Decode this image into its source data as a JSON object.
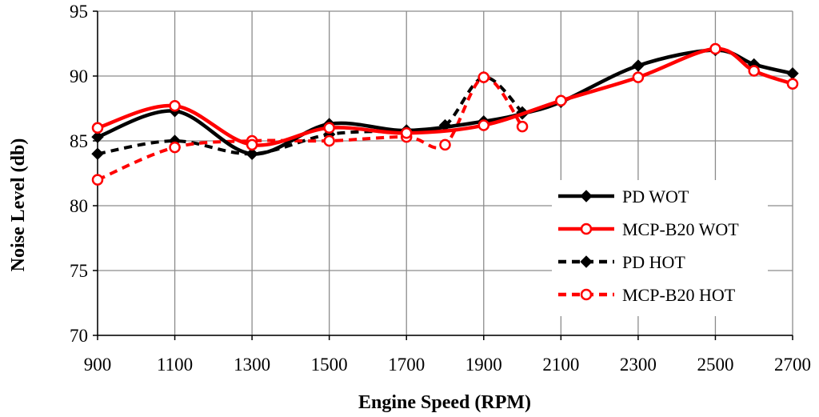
{
  "chart_data": {
    "type": "line",
    "title": "",
    "xlabel": "Engine Speed (RPM)",
    "ylabel": "Noise Level (db)",
    "xlim": [
      900,
      2700
    ],
    "ylim": [
      70,
      95
    ],
    "xticks": [
      900,
      1100,
      1300,
      1500,
      1700,
      1900,
      2100,
      2300,
      2500,
      2700
    ],
    "yticks": [
      70,
      75,
      80,
      85,
      90,
      95
    ],
    "grid": true,
    "legend_position": "bottom-right",
    "series": [
      {
        "name": "PD WOT",
        "color": "#000000",
        "line_style": "solid",
        "marker": "diamond",
        "x": [
          900,
          1100,
          1300,
          1500,
          1700,
          1900,
          2000,
          2100,
          2300,
          2500,
          2600,
          2700
        ],
        "y": [
          85.3,
          87.3,
          84.0,
          86.3,
          85.8,
          86.5,
          87.1,
          88.0,
          90.8,
          92.0,
          90.9,
          90.2
        ]
      },
      {
        "name": "MCP-B20 WOT",
        "color": "#ff0000",
        "line_style": "solid",
        "marker": "circle",
        "x": [
          900,
          1100,
          1300,
          1500,
          1700,
          1900,
          2100,
          2300,
          2500,
          2600,
          2700
        ],
        "y": [
          86.0,
          87.7,
          84.7,
          86.0,
          85.6,
          86.2,
          88.1,
          89.9,
          92.1,
          90.4,
          89.4
        ]
      },
      {
        "name": "PD HOT",
        "color": "#000000",
        "line_style": "dashed",
        "marker": "diamond",
        "x": [
          900,
          1100,
          1300,
          1500,
          1700,
          1800,
          1900,
          2000
        ],
        "y": [
          84.0,
          85.0,
          84.0,
          85.5,
          85.8,
          86.2,
          89.9,
          87.2
        ]
      },
      {
        "name": "MCP-B20 HOT",
        "color": "#ff0000",
        "line_style": "dashed",
        "marker": "circle",
        "x": [
          900,
          1100,
          1300,
          1500,
          1700,
          1800,
          1900,
          2000
        ],
        "y": [
          82.0,
          84.5,
          85.0,
          85.0,
          85.3,
          84.7,
          89.9,
          86.1
        ]
      }
    ]
  }
}
